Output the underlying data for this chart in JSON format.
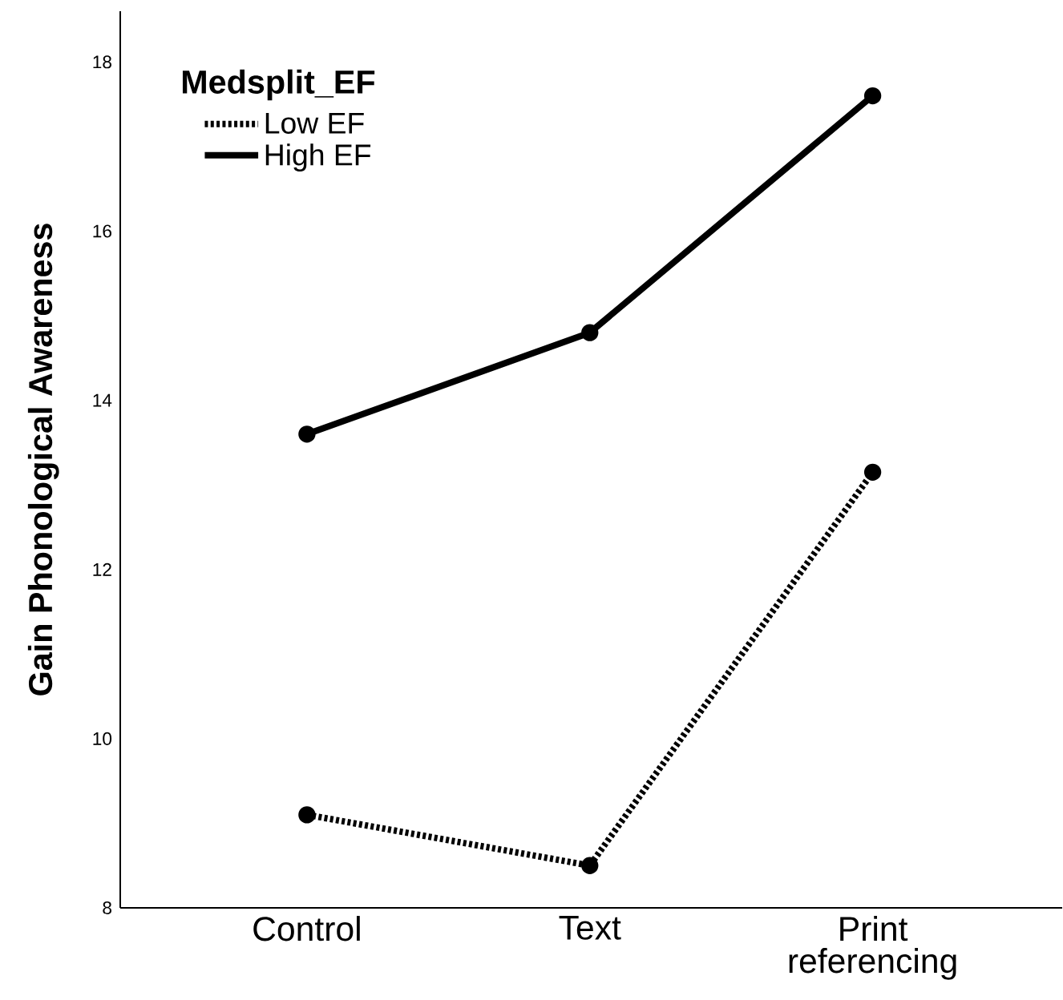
{
  "chart_data": {
    "type": "line",
    "ylabel": "Gain Phonological Awareness",
    "legend_title": "Medsplit_EF",
    "categories": [
      "Control",
      "Text",
      "Print referencing"
    ],
    "series": [
      {
        "name": "Low EF",
        "color": "#000000",
        "line_style": "dotted",
        "values": [
          9.1,
          8.5,
          13.15
        ]
      },
      {
        "name": "High EF",
        "color": "#000000",
        "line_style": "solid",
        "values": [
          13.6,
          14.8,
          17.6
        ]
      }
    ],
    "ylim": [
      8,
      18.6
    ],
    "yticks": [
      8,
      10,
      12,
      14,
      16,
      18
    ],
    "grid": false,
    "legend": "top left",
    "marker": "circle"
  }
}
